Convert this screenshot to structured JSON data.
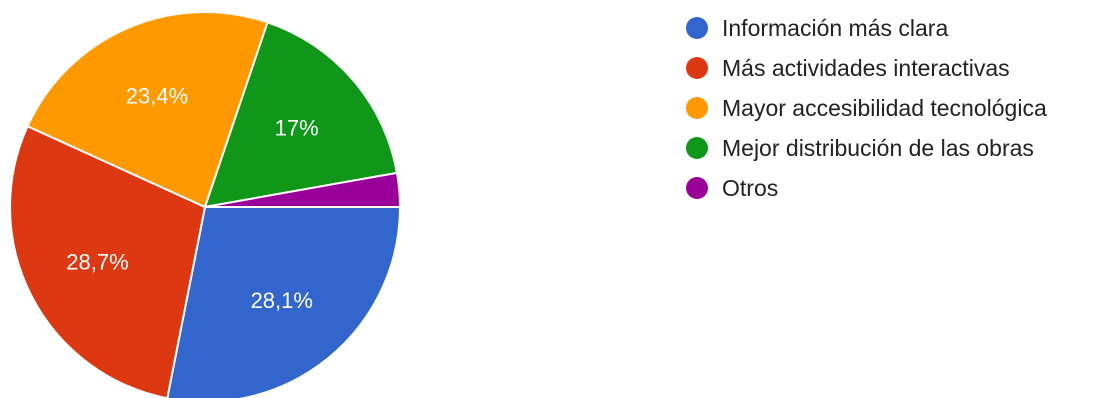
{
  "chart_data": {
    "type": "pie",
    "title": "",
    "series": [
      {
        "name": "Información más clara",
        "value": 28.1,
        "label": "28,1%",
        "color": "#3366cc"
      },
      {
        "name": "Más actividades interactivas",
        "value": 28.7,
        "label": "28,7%",
        "color": "#dc3912"
      },
      {
        "name": "Mayor accesibilidad tecnológica",
        "value": 23.4,
        "label": "23,4%",
        "color": "#ff9900"
      },
      {
        "name": "Mejor distribución de las obras",
        "value": 17.0,
        "label": "17%",
        "color": "#109618"
      },
      {
        "name": "Otros",
        "value": 2.8,
        "label": "",
        "color": "#990099"
      }
    ],
    "start": "3 o'clock",
    "direction": "clockwise",
    "legend_position": "right"
  }
}
